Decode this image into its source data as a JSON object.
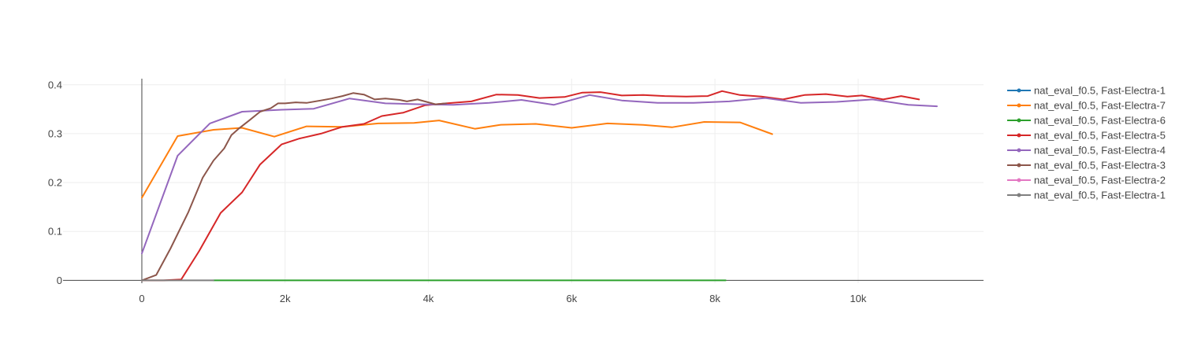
{
  "chart_data": {
    "type": "line",
    "title": "",
    "xlabel": "",
    "ylabel": "",
    "xlim": [
      -1100,
      11750
    ],
    "ylim": [
      -0.0058,
      0.4125
    ],
    "x_ticks": [
      0,
      2000,
      4000,
      6000,
      8000,
      10000
    ],
    "x_tick_labels": [
      "0",
      "2k",
      "4k",
      "6k",
      "8k",
      "10k"
    ],
    "y_ticks": [
      0,
      0.1,
      0.2,
      0.3,
      0.4
    ],
    "y_tick_labels": [
      "0",
      "0.1",
      "0.2",
      "0.3",
      "0.4"
    ],
    "grid": true,
    "legend_position": "top-right",
    "series": [
      {
        "name": "nat_eval_f0.5, Fast-Electra-1",
        "color": "#1f77b4",
        "x": [],
        "y": []
      },
      {
        "name": "nat_eval_f0.5, Fast-Electra-7",
        "color": "#ff7f0e",
        "x": [
          0,
          500,
          1000,
          1400,
          1850,
          2300,
          2800,
          3300,
          3800,
          4150,
          4650,
          5000,
          5500,
          6000,
          6500,
          7000,
          7400,
          7850,
          8350,
          8800
        ],
        "y": [
          0.169,
          0.295,
          0.308,
          0.312,
          0.294,
          0.315,
          0.314,
          0.321,
          0.322,
          0.327,
          0.31,
          0.318,
          0.32,
          0.312,
          0.321,
          0.318,
          0.313,
          0.324,
          0.323,
          0.299
        ]
      },
      {
        "name": "nat_eval_f0.5, Fast-Electra-6",
        "color": "#2ca02c",
        "x": [
          1000,
          2000,
          3000,
          4000,
          5000,
          6000,
          7000,
          8150
        ],
        "y": [
          0,
          0,
          0,
          0,
          0,
          0,
          0,
          0
        ]
      },
      {
        "name": "nat_eval_f0.5, Fast-Electra-5",
        "color": "#d62728",
        "x": [
          0,
          300,
          550,
          800,
          1100,
          1400,
          1650,
          1950,
          2200,
          2500,
          2800,
          3100,
          3350,
          3650,
          3950,
          4250,
          4600,
          4950,
          5250,
          5550,
          5900,
          6150,
          6400,
          6700,
          7000,
          7300,
          7600,
          7900,
          8100,
          8350,
          8650,
          8950,
          9250,
          9550,
          9850,
          10050,
          10350,
          10600,
          10850
        ],
        "y": [
          0,
          0,
          0.002,
          0.06,
          0.138,
          0.18,
          0.237,
          0.278,
          0.29,
          0.3,
          0.314,
          0.32,
          0.336,
          0.343,
          0.358,
          0.362,
          0.366,
          0.38,
          0.379,
          0.373,
          0.375,
          0.384,
          0.385,
          0.378,
          0.379,
          0.377,
          0.376,
          0.377,
          0.387,
          0.379,
          0.376,
          0.37,
          0.379,
          0.381,
          0.376,
          0.378,
          0.37,
          0.377,
          0.37
        ]
      },
      {
        "name": "nat_eval_f0.5, Fast-Electra-4",
        "color": "#9467bd",
        "x": [
          0,
          500,
          950,
          1400,
          1950,
          2400,
          2900,
          3400,
          3900,
          4350,
          4850,
          5300,
          5750,
          6250,
          6700,
          7200,
          7700,
          8200,
          8700,
          9200,
          9700,
          10200,
          10700,
          11100
        ],
        "y": [
          0.055,
          0.255,
          0.321,
          0.345,
          0.349,
          0.351,
          0.372,
          0.362,
          0.36,
          0.359,
          0.363,
          0.369,
          0.359,
          0.379,
          0.368,
          0.363,
          0.363,
          0.366,
          0.373,
          0.363,
          0.365,
          0.37,
          0.359,
          0.356
        ]
      },
      {
        "name": "nat_eval_f0.5, Fast-Electra-3",
        "color": "#8c564b",
        "x": [
          0,
          200,
          400,
          650,
          850,
          1000,
          1150,
          1250,
          1350,
          1500,
          1650,
          1800,
          1900,
          2000,
          2150,
          2300,
          2500,
          2650,
          2800,
          2950,
          3100,
          3250,
          3400,
          3600,
          3700,
          3850,
          4000,
          4100,
          4250
        ],
        "y": [
          0,
          0.011,
          0.065,
          0.14,
          0.21,
          0.245,
          0.27,
          0.297,
          0.31,
          0.327,
          0.345,
          0.352,
          0.362,
          0.362,
          0.364,
          0.363,
          0.368,
          0.372,
          0.377,
          0.383,
          0.38,
          0.37,
          0.372,
          0.369,
          0.366,
          0.37,
          0.364,
          0.36,
          0.362
        ]
      },
      {
        "name": "nat_eval_f0.5, Fast-Electra-2",
        "color": "#e377c2",
        "x": [],
        "y": []
      },
      {
        "name": "nat_eval_f0.5, Fast-Electra-1",
        "color": "#7f7f7f",
        "x": [
          0,
          500,
          1000
        ],
        "y": [
          0,
          0,
          0
        ]
      }
    ]
  }
}
